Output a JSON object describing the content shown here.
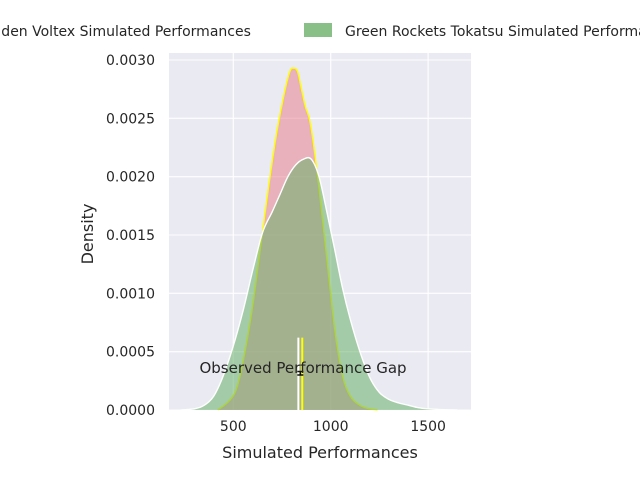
{
  "chart_data": {
    "type": "area",
    "subtype": "kde-density",
    "xlabel": "Simulated Performances",
    "ylabel": "Density",
    "xlim": [
      170,
      1720
    ],
    "ylim": [
      0,
      0.00306
    ],
    "grid": true,
    "legend_placement": "top",
    "x_ticks": [
      {
        "value": 500,
        "label": "500"
      },
      {
        "value": 1000,
        "label": "1000"
      },
      {
        "value": 1500,
        "label": "1500"
      }
    ],
    "y_ticks": [
      {
        "value": 0,
        "label": "0.0000"
      },
      {
        "value": 0.0005,
        "label": "0.0005"
      },
      {
        "value": 0.001,
        "label": "0.0010"
      },
      {
        "value": 0.0015,
        "label": "0.0015"
      },
      {
        "value": 0.002,
        "label": "0.0020"
      },
      {
        "value": 0.0025,
        "label": "0.0025"
      },
      {
        "value": 0.003,
        "label": "0.0030"
      }
    ],
    "series": [
      {
        "name": "Golden Voltex Simulated Performances",
        "legend_label": "Golden Voltex Simulated Performances",
        "fill": "#e8828f",
        "edge": "#ffff00",
        "x": [
          420,
          480,
          520,
          560,
          600,
          640,
          680,
          720,
          760,
          790,
          810,
          830,
          850,
          870,
          890,
          910,
          940,
          980,
          1020,
          1060,
          1100,
          1150,
          1200,
          1240
        ],
        "y": [
          0,
          8e-05,
          0.0002,
          0.0005,
          0.0009,
          0.0014,
          0.0019,
          0.00235,
          0.0027,
          0.0029,
          0.00293,
          0.0029,
          0.00275,
          0.0026,
          0.0025,
          0.0023,
          0.0019,
          0.0013,
          0.0007,
          0.0003,
          0.00012,
          4e-05,
          1e-05,
          0
        ]
      },
      {
        "name": "Green Rockets Tokatsu Simulated Performances",
        "legend_label": "Green Rockets Tokatsu Simulated Performances",
        "fill": "#6ab06a",
        "edge": "#ffffff",
        "x": [
          230,
          300,
          350,
          400,
          450,
          500,
          550,
          600,
          650,
          700,
          740,
          780,
          820,
          860,
          900,
          940,
          980,
          1020,
          1060,
          1100,
          1150,
          1200,
          1250,
          1300,
          1350,
          1400,
          1450,
          1500,
          1550,
          1600,
          1650
        ],
        "y": [
          0,
          1e-05,
          4e-05,
          0.00012,
          0.0003,
          0.00055,
          0.00085,
          0.0012,
          0.00152,
          0.0017,
          0.00185,
          0.002,
          0.0021,
          0.00215,
          0.00215,
          0.002,
          0.0017,
          0.00138,
          0.00105,
          0.00078,
          0.0005,
          0.00028,
          0.00015,
          9e-05,
          6e-05,
          4e-05,
          2e-05,
          1e-05,
          5e-06,
          2e-06,
          0
        ]
      }
    ],
    "observed": [
      {
        "series": "Golden Voltex",
        "x": 854,
        "color": "#ffff00"
      },
      {
        "series": "Green Rockets Tokatsu",
        "x": 834,
        "color": "#ffffff"
      }
    ],
    "observed_line_top": 0.00062,
    "gap": {
      "x": 844,
      "y1": 0.00033,
      "y2": 0.0003
    },
    "annotation": "Observed Performance Gap"
  }
}
